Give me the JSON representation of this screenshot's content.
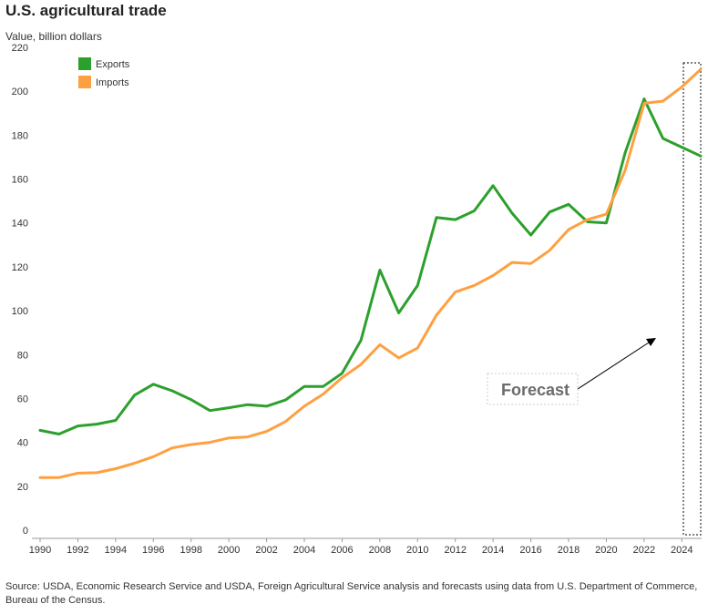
{
  "title": "U.S. agricultural trade",
  "source": "Source: USDA, Economic Research Service and USDA, Foreign Agricultural Service analysis and forecasts using data from U.S. Department of Commerce, Bureau of the Census.",
  "chart_data": {
    "type": "line",
    "ylabel": "Value, billion dollars",
    "ylim": [
      0,
      220
    ],
    "yticks": [
      0,
      20,
      40,
      60,
      80,
      100,
      120,
      140,
      160,
      180,
      200,
      220
    ],
    "xlim": [
      1990,
      2025
    ],
    "xticks": [
      1990,
      1992,
      1994,
      1996,
      1998,
      2000,
      2002,
      2004,
      2006,
      2008,
      2010,
      2012,
      2014,
      2016,
      2018,
      2020,
      2022,
      2024
    ],
    "grid": false,
    "legend": "top-left",
    "x": [
      1990,
      1991,
      1992,
      1993,
      1994,
      1995,
      1996,
      1997,
      1998,
      1999,
      2000,
      2001,
      2002,
      2003,
      2004,
      2005,
      2006,
      2007,
      2008,
      2009,
      2010,
      2011,
      2012,
      2013,
      2014,
      2015,
      2016,
      2017,
      2018,
      2019,
      2020,
      2021,
      2022,
      2023,
      2024,
      2025
    ],
    "series": [
      {
        "name": "Exports",
        "color": "#2ca02c",
        "values": [
          45.5,
          43.8,
          47.5,
          48.3,
          50,
          61.5,
          66.5,
          63.5,
          59.5,
          54.5,
          55.8,
          57.2,
          56.5,
          59.3,
          65.5,
          65.5,
          71.5,
          86.5,
          118.5,
          99,
          111.5,
          142.5,
          141.5,
          145.5,
          157,
          144.5,
          134.5,
          145,
          148.5,
          140.5,
          140,
          172,
          196.5,
          178.5,
          174.5,
          170.5
        ]
      },
      {
        "name": "Imports",
        "color": "#ffa040",
        "values": [
          24,
          24,
          26,
          26.2,
          28,
          30.5,
          33.5,
          37.5,
          39,
          40,
          42,
          42.5,
          45,
          49.5,
          56.5,
          62,
          69.5,
          75.5,
          84.5,
          78.5,
          83,
          98,
          108.5,
          111.5,
          116,
          122,
          121.5,
          127.5,
          137,
          141.5,
          144,
          164,
          194.5,
          195.5,
          202,
          210
        ]
      }
    ],
    "annotations": [
      {
        "text": "Forecast",
        "x_range": [
          2024,
          2025
        ]
      }
    ]
  }
}
